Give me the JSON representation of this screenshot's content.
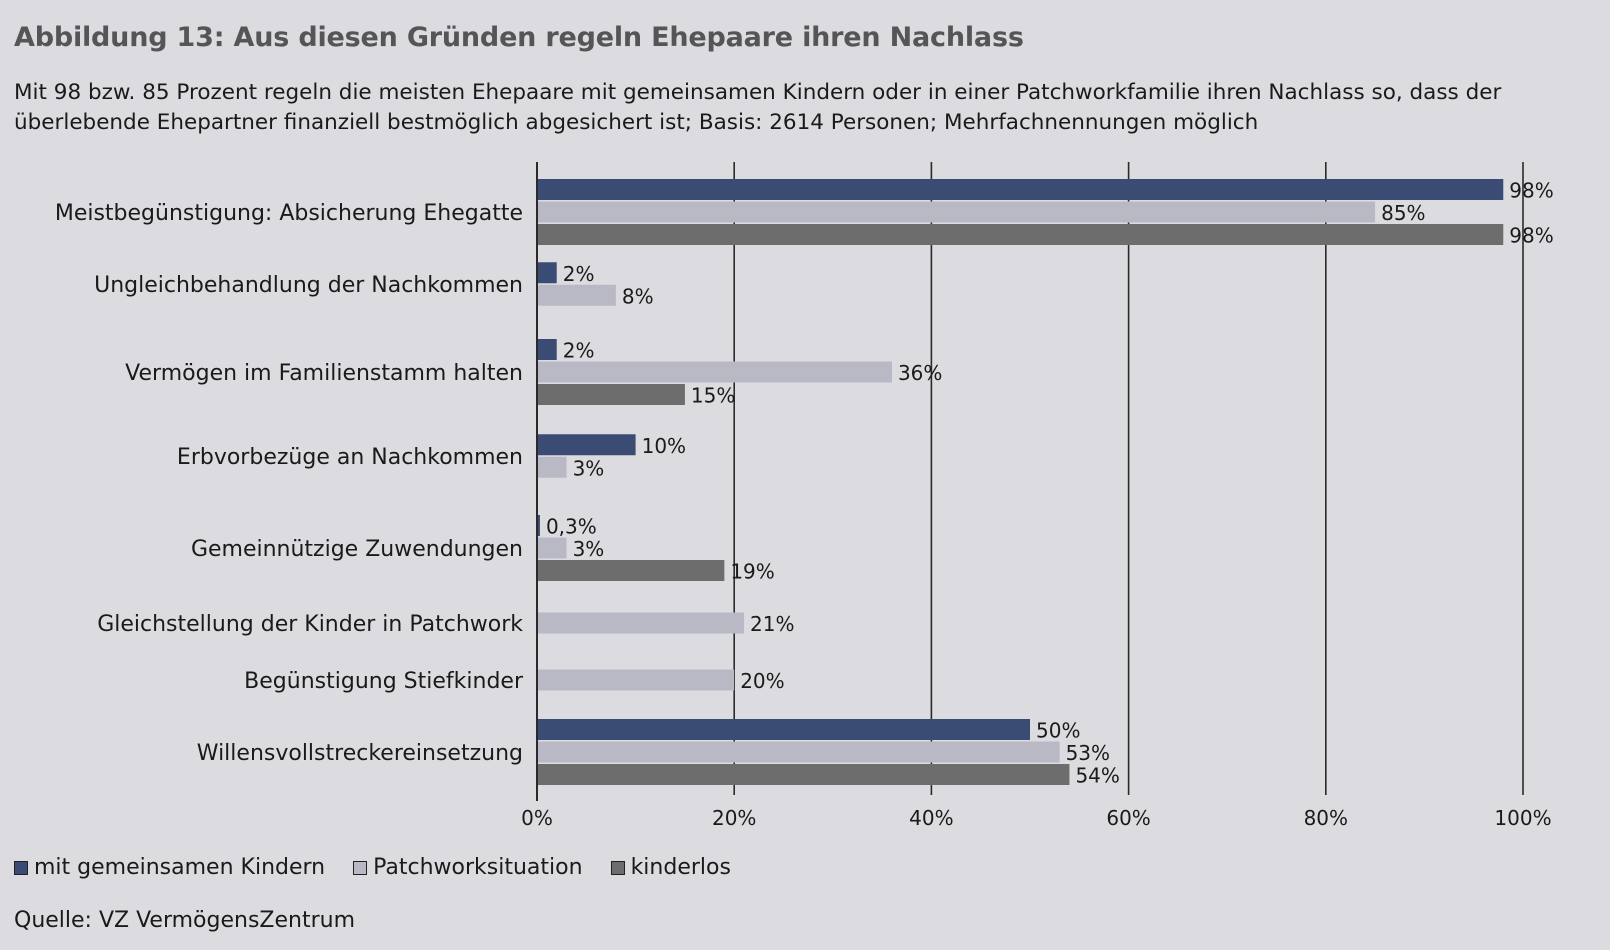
{
  "header": {
    "title": "Abbildung 13: Aus diesen Gründen regeln Ehepaare ihren Nachlass",
    "subtitle": "Mit 98 bzw. 85 Prozent regeln die meisten Ehepaare mit gemeinsamen Kindern oder in einer Patchworkfamilie ihren Nachlass so, dass der überlebende Ehepartner finanziell bestmöglich abgesichert ist; Basis: 2614 Personen; Mehrfachnennungen möglich"
  },
  "colors": {
    "mit_kindern": "#3b4c74",
    "patchwork": "#b9b9c6",
    "kinderlos": "#6d6d6d",
    "background": "#dcdce0"
  },
  "chart_data": {
    "type": "bar",
    "orientation": "horizontal",
    "categories": [
      "Meistbegünstigung: Absicherung Ehegatte",
      "Ungleichbehandlung der Nachkommen",
      "Vermögen im Familienstamm halten",
      "Erbvorbezüge an Nachkommen",
      "Gemeinnützige Zuwendungen",
      "Gleichstellung der Kinder in Patchwork",
      "Begünstigung Stiefkinder",
      "Willensvollstreckereinsetzung"
    ],
    "series": [
      {
        "name": "mit gemeinsamen Kindern",
        "values": [
          98,
          2,
          2,
          10,
          0.3,
          null,
          null,
          50
        ],
        "labels": [
          "98%",
          "2%",
          "2%",
          "10%",
          "0,3%",
          null,
          null,
          "50%"
        ]
      },
      {
        "name": "Patchworksituation",
        "values": [
          85,
          8,
          36,
          3,
          3,
          21,
          20,
          53
        ],
        "labels": [
          "85%",
          "8%",
          "36%",
          "3%",
          "3%",
          "21%",
          "20%",
          "53%"
        ]
      },
      {
        "name": "kinderlos",
        "values": [
          98,
          null,
          15,
          null,
          19,
          null,
          null,
          54
        ],
        "labels": [
          "98%",
          null,
          "15%",
          null,
          "19%",
          null,
          null,
          "54%"
        ]
      }
    ],
    "xlim": [
      0,
      100
    ],
    "xticks": [
      0,
      20,
      40,
      60,
      80,
      100
    ],
    "xtick_labels": [
      "0%",
      "20%",
      "40%",
      "60%",
      "80%",
      "100%"
    ],
    "grid": true,
    "legend_position": "bottom-left"
  },
  "legend": [
    {
      "label": "mit gemeinsamen Kindern"
    },
    {
      "label": "Patchworksituation"
    },
    {
      "label": "kinderlos"
    }
  ],
  "footer": {
    "source": "Quelle: VZ VermögensZentrum"
  }
}
